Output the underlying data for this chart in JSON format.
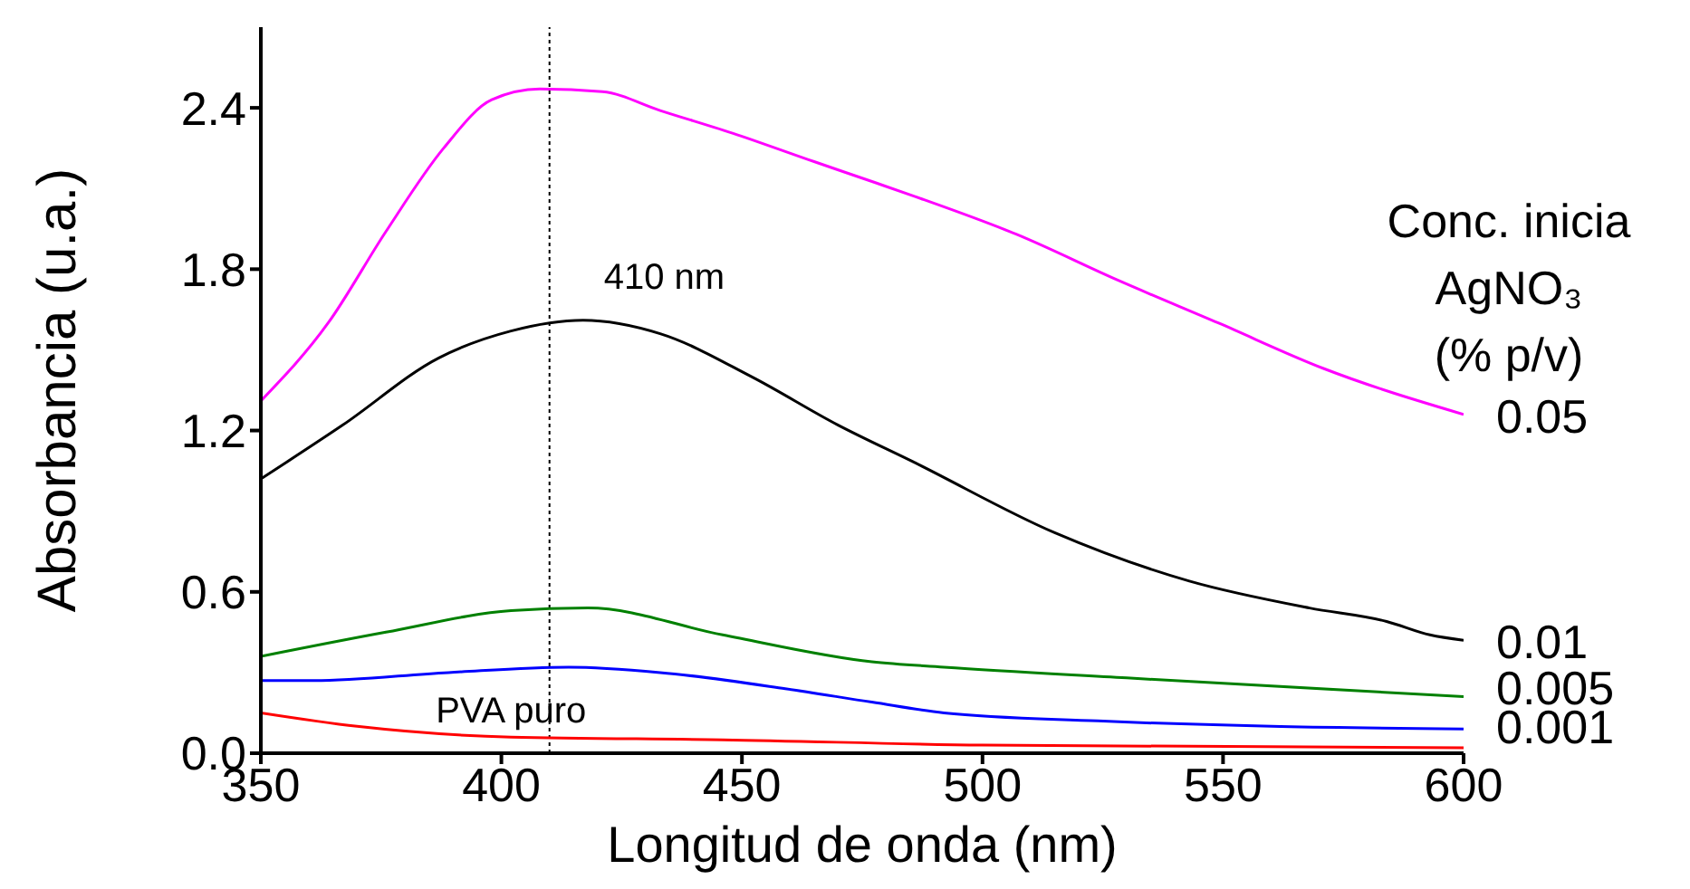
{
  "chart_data": {
    "type": "line",
    "xlabel": "Longitud de onda (nm)",
    "ylabel": "Absorbancia (u.a.)",
    "legend_title": "Conc. inicia AgNO₃ (% p/v)",
    "xlim": [
      350,
      600
    ],
    "xticks": [
      350,
      400,
      450,
      500,
      550,
      600
    ],
    "ylim": [
      0,
      2.7
    ],
    "yticks": [
      {
        "value": 0,
        "label": "0.0"
      },
      0.6,
      1.2,
      1.8,
      2.4
    ],
    "marker": "none",
    "grid": false,
    "legend": false,
    "ref_lines": [
      {
        "axis": "x",
        "value": 410,
        "label": "410 nm",
        "line_style": "dotted",
        "color": "#000000"
      }
    ],
    "series": [
      {
        "name": "0.05",
        "color": "#ff00ff",
        "x": [
          350,
          364,
          376,
          388,
          398,
          408,
          421,
          433,
          449,
          465,
          478,
          486,
          507,
          528,
          549,
          571,
          600
        ],
        "values": [
          1.31,
          1.6,
          1.94,
          2.25,
          2.43,
          2.47,
          2.46,
          2.39,
          2.3,
          2.2,
          2.12,
          2.07,
          1.93,
          1.76,
          1.6,
          1.43,
          1.26
        ]
      },
      {
        "name": "0.01",
        "color": "#000000",
        "x": [
          350,
          367,
          387,
          402,
          417,
          433,
          452,
          470,
          486,
          515,
          543,
          568,
          584,
          593,
          600
        ],
        "values": [
          1.02,
          1.22,
          1.47,
          1.57,
          1.61,
          1.56,
          1.4,
          1.22,
          1.08,
          0.82,
          0.64,
          0.54,
          0.49,
          0.44,
          0.42
        ]
      },
      {
        "name": "0.005",
        "color": "#008000",
        "x": [
          350,
          376,
          402,
          418,
          446,
          477,
          492,
          530,
          600
        ],
        "values": [
          0.36,
          0.45,
          0.53,
          0.54,
          0.44,
          0.34,
          0.32,
          0.28,
          0.21
        ]
      },
      {
        "name": "0.001",
        "color": "#0000ff",
        "x": [
          350,
          361,
          389,
          414,
          433,
          459,
          477,
          492,
          524,
          600
        ],
        "values": [
          0.27,
          0.27,
          0.3,
          0.32,
          0.3,
          0.24,
          0.19,
          0.15,
          0.12,
          0.09
        ]
      },
      {
        "name": "PVA puro",
        "color": "#ff0000",
        "x": [
          350,
          370,
          402,
          446,
          500,
          600
        ],
        "values": [
          0.15,
          0.1,
          0.06,
          0.05,
          0.03,
          0.02
        ]
      }
    ]
  }
}
